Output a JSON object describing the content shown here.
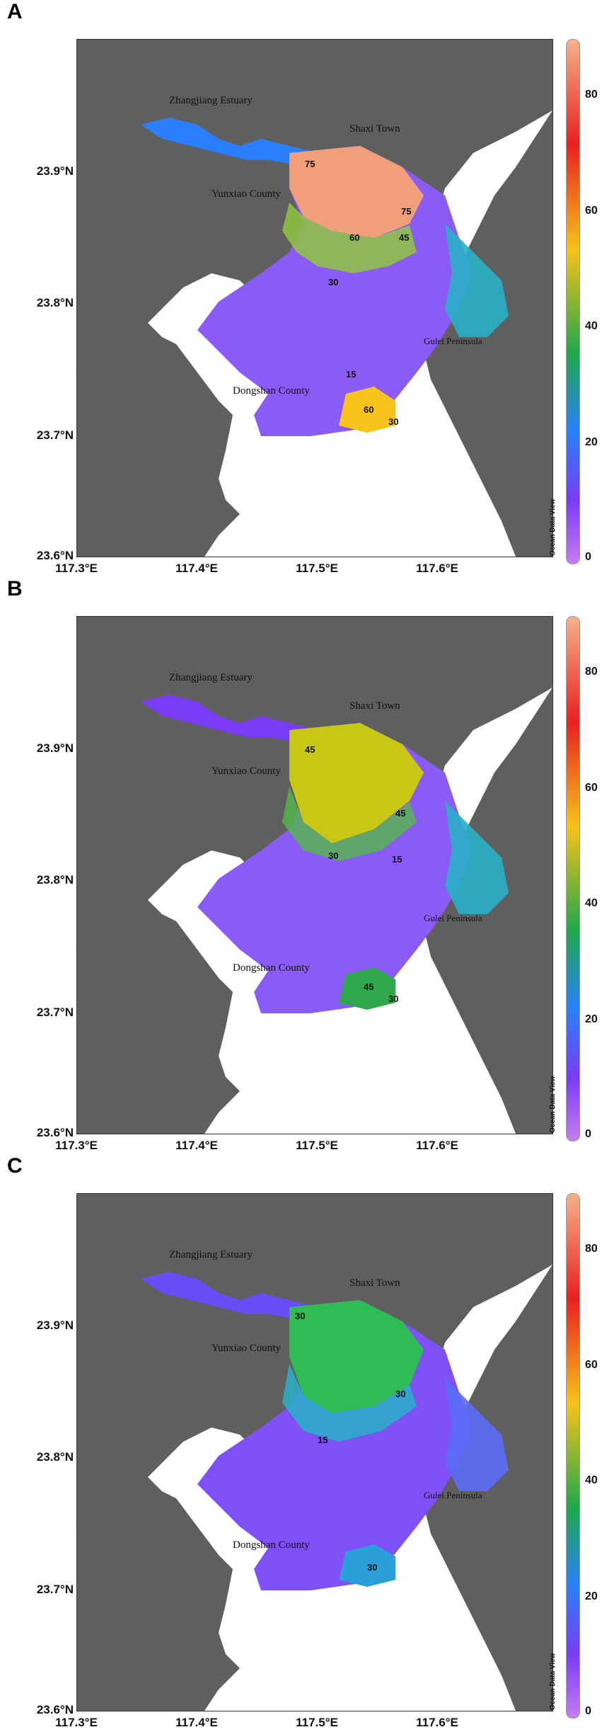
{
  "panels": [
    {
      "letter": "A",
      "places": {
        "zhangjiang": "Zhangjiang Estuary",
        "shaxi": "Shaxi Town",
        "yunxiao": "Yunxiao County",
        "gulei": "Gulei Peninsula",
        "dongshan": "Dongshan County"
      },
      "contours": [
        "75",
        "75",
        "60",
        "45",
        "30",
        "15",
        "60",
        "30"
      ],
      "colors": {
        "north": "#f19e7a",
        "north_core": "#f4a27c",
        "mid": "#8fc63f",
        "south": "#f7c21a"
      }
    },
    {
      "letter": "B",
      "places": {
        "zhangjiang": "Zhangjiang Estuary",
        "shaxi": "Shaxi Town",
        "yunxiao": "Yunxiao County",
        "gulei": "Gulei Peninsula",
        "dongshan": "Dongshan County"
      },
      "contours": [
        "45",
        "45",
        "30",
        "15",
        "45",
        "30"
      ],
      "colors": {
        "north": "#c9c716",
        "north_core": "#c8c918",
        "mid": "#52b94a",
        "south": "#2ea84a"
      }
    },
    {
      "letter": "C",
      "places": {
        "zhangjiang": "Zhangjiang Estuary",
        "shaxi": "Shaxi Town",
        "yunxiao": "Yunxiao County",
        "gulei": "Gulei Peninsula",
        "dongshan": "Dongshan County"
      },
      "contours": [
        "30",
        "30",
        "15",
        "30"
      ],
      "colors": {
        "north": "#2fbb55",
        "north_core": "#33c05a",
        "mid": "#29b0c8",
        "south": "#2a9fd8"
      }
    }
  ],
  "axes": {
    "y_ticks": [
      "23.9°N",
      "23.8°N",
      "23.7°N",
      "23.6°N"
    ],
    "x_ticks": [
      "117.3°E",
      "117.4°E",
      "117.5°E",
      "117.6°E"
    ]
  },
  "colorbar": {
    "ticks": [
      "80",
      "60",
      "40",
      "20",
      "0"
    ],
    "label": "Ocean Data View",
    "stops": [
      "#f6b08a",
      "#e82020",
      "#f6c21a",
      "#1ea84b",
      "#2a7fff",
      "#7a3cf5",
      "#c77cf0"
    ]
  }
}
